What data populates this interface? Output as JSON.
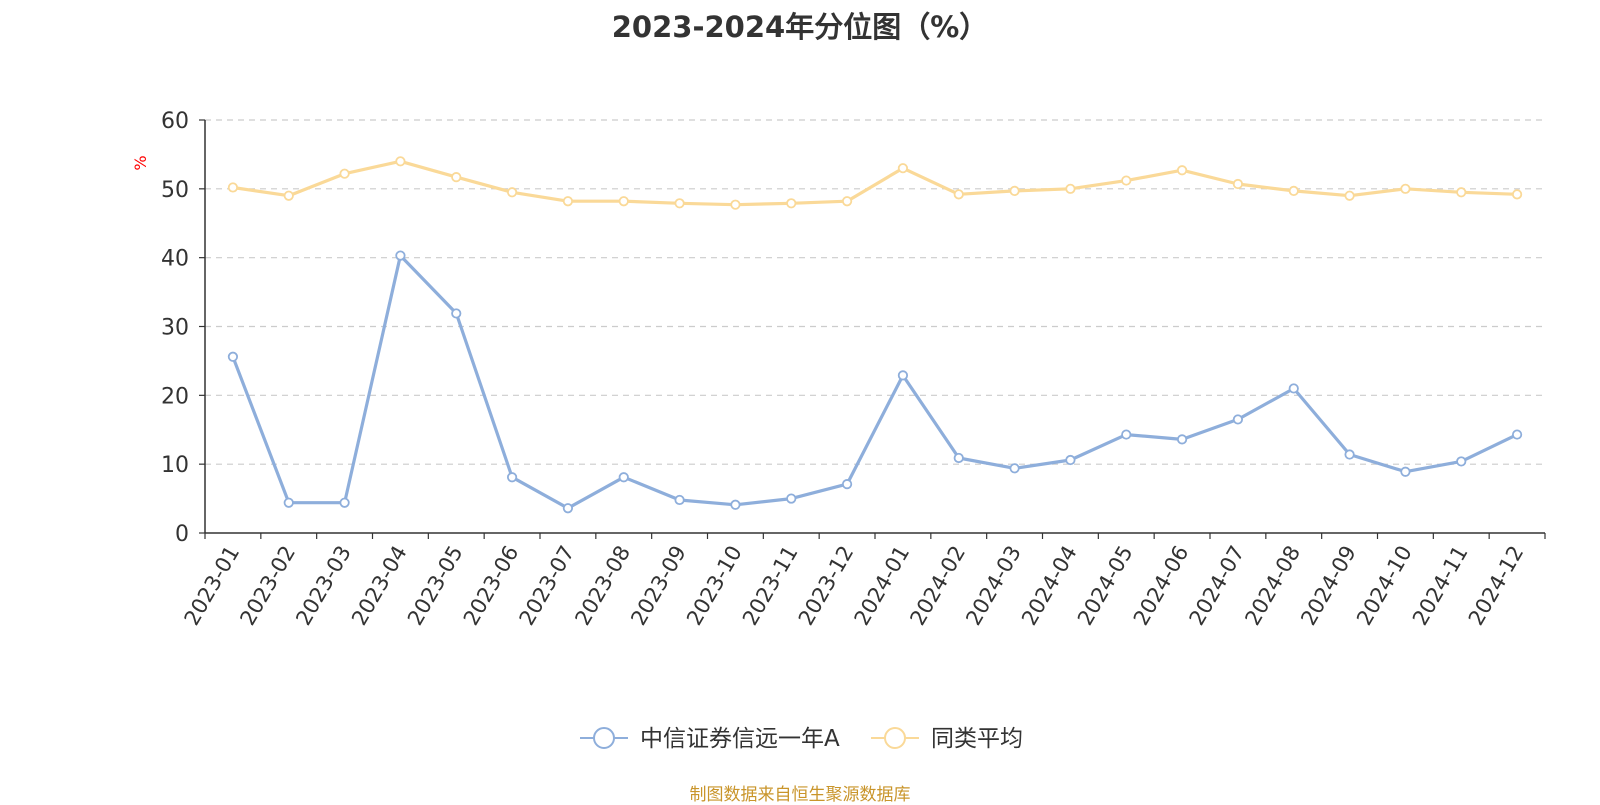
{
  "chart_data": {
    "type": "line",
    "title": "2023-2024年分位图（%）",
    "ylabel": "%",
    "ylim": [
      0,
      60
    ],
    "y_ticks": [
      0,
      10,
      20,
      30,
      40,
      50,
      60
    ],
    "grid": true,
    "legend_position": "bottom",
    "categories": [
      "2023-01",
      "2023-02",
      "2023-03",
      "2023-04",
      "2023-05",
      "2023-06",
      "2023-07",
      "2023-08",
      "2023-09",
      "2023-10",
      "2023-11",
      "2023-12",
      "2024-01",
      "2024-02",
      "2024-03",
      "2024-04",
      "2024-05",
      "2024-06",
      "2024-07",
      "2024-08",
      "2024-09",
      "2024-10",
      "2024-11",
      "2024-12"
    ],
    "series": [
      {
        "name": "中信证券信远一年A",
        "color": "#8eaedb",
        "values": [
          25.6,
          4.4,
          4.4,
          40.3,
          31.9,
          8.1,
          3.6,
          8.1,
          4.8,
          4.1,
          5.0,
          7.1,
          22.9,
          10.9,
          9.4,
          10.6,
          14.3,
          13.6,
          16.5,
          21.0,
          11.4,
          8.9,
          10.4,
          14.3
        ]
      },
      {
        "name": "同类平均",
        "color": "#fad998",
        "values": [
          50.2,
          49.0,
          52.2,
          54.0,
          51.7,
          49.5,
          48.2,
          48.2,
          47.9,
          47.7,
          47.9,
          48.2,
          53.0,
          49.2,
          49.7,
          50.0,
          51.2,
          52.7,
          50.7,
          49.7,
          49.0,
          50.0,
          49.5,
          49.2
        ]
      }
    ]
  },
  "footer": {
    "source": "制图数据来自恒生聚源数据库"
  }
}
